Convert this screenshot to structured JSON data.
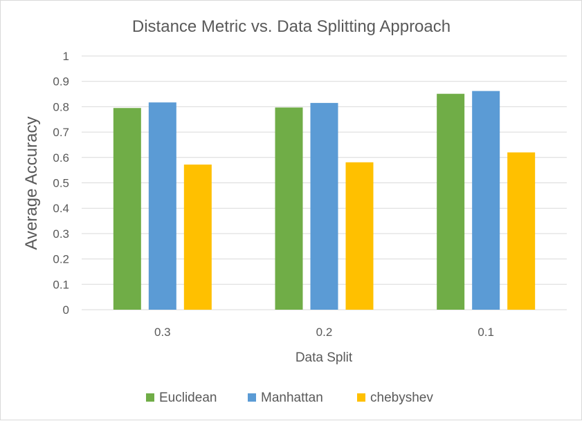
{
  "chart_data": {
    "type": "bar",
    "title": "Distance Metric vs. Data Splitting Approach",
    "xlabel": "Data Split",
    "ylabel": "Average Accuracy",
    "categories": [
      "0.3",
      "0.2",
      "0.1"
    ],
    "ylim": [
      0,
      1
    ],
    "yticks": [
      "0",
      "0.1",
      "0.2",
      "0.3",
      "0.4",
      "0.5",
      "0.6",
      "0.7",
      "0.8",
      "0.9",
      "1"
    ],
    "grid": true,
    "legend_position": "bottom",
    "series": [
      {
        "name": "Euclidean",
        "color": "#70ad47",
        "values": [
          0.795,
          0.797,
          0.851
        ]
      },
      {
        "name": "Manhattan",
        "color": "#5b9bd5",
        "values": [
          0.817,
          0.815,
          0.862
        ]
      },
      {
        "name": "chebyshev",
        "color": "#ffc000",
        "values": [
          0.572,
          0.581,
          0.62
        ]
      }
    ]
  }
}
